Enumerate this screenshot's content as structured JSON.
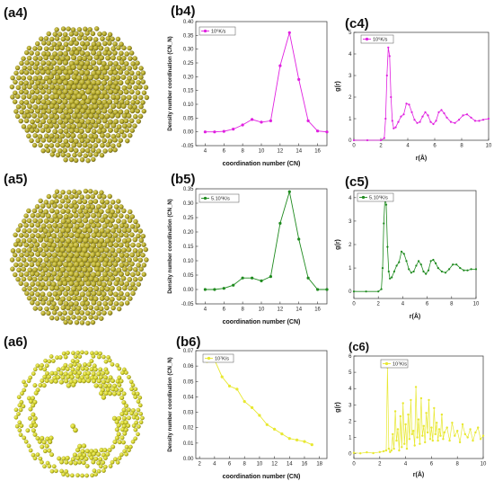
{
  "panels": [
    {
      "id": "a4",
      "label": "(a4)",
      "kind": "sphere",
      "color": "#b5a92a",
      "dark": "#6f6716",
      "light": "#dcd36a",
      "holes": false
    },
    {
      "id": "a5",
      "label": "(a5)",
      "kind": "sphere",
      "color": "#b9ad2c",
      "dark": "#716917",
      "light": "#e0d66d",
      "holes": false
    },
    {
      "id": "a6",
      "label": "(a6)",
      "kind": "sphere",
      "color": "#d7d62e",
      "dark": "#8f8d12",
      "light": "#f3f27a",
      "holes": true
    }
  ],
  "panel_labels": {
    "b4": "(b4)",
    "c4": "(c4)",
    "b5": "(b5)",
    "c5": "(c5)",
    "b6": "(b6)",
    "c6": "(c6)"
  },
  "chart_data": [
    {
      "id": "b4",
      "type": "line",
      "color": "#e020e0",
      "legend": "10⁵K/s",
      "xlabel": "coordination number (CN)",
      "ylabel": "Density number coordination (CN_N)",
      "xlim": [
        3,
        17
      ],
      "ylim": [
        -0.05,
        0.4
      ],
      "xticks": [
        4,
        6,
        8,
        10,
        12,
        14,
        16
      ],
      "yticks": [
        -0.05,
        0.0,
        0.05,
        0.1,
        0.15,
        0.2,
        0.25,
        0.3,
        0.35,
        0.4
      ],
      "x": [
        4,
        5,
        6,
        7,
        8,
        9,
        10,
        11,
        12,
        13,
        14,
        15,
        16,
        17
      ],
      "y": [
        0.0,
        0.0,
        0.002,
        0.01,
        0.025,
        0.045,
        0.035,
        0.04,
        0.24,
        0.36,
        0.19,
        0.04,
        0.003,
        0.0
      ]
    },
    {
      "id": "c4",
      "type": "line",
      "color": "#e020e0",
      "legend": "10⁵K/s",
      "xlabel": "r(Å)",
      "ylabel": "g(r)",
      "xlim": [
        0,
        10
      ],
      "ylim": [
        0,
        5
      ],
      "xticks": [
        0,
        2,
        4,
        6,
        8,
        10
      ],
      "yticks": [
        0,
        1,
        2,
        3,
        4,
        5
      ],
      "x": [
        0,
        1.0,
        2.0,
        2.25,
        2.35,
        2.45,
        2.55,
        2.65,
        2.75,
        2.85,
        2.95,
        3.1,
        3.3,
        3.5,
        3.7,
        3.9,
        4.1,
        4.3,
        4.5,
        4.7,
        4.9,
        5.1,
        5.3,
        5.5,
        5.7,
        5.9,
        6.1,
        6.3,
        6.5,
        6.7,
        6.9,
        7.2,
        7.5,
        7.8,
        8.1,
        8.4,
        8.7,
        9.0,
        9.3,
        9.6,
        10.0
      ],
      "y": [
        0,
        0,
        0,
        0.1,
        1.0,
        3.0,
        4.3,
        3.9,
        2.0,
        0.9,
        0.55,
        0.6,
        0.85,
        1.1,
        1.2,
        1.7,
        1.65,
        1.3,
        0.95,
        0.8,
        0.85,
        1.1,
        1.3,
        1.15,
        0.85,
        0.75,
        0.9,
        1.3,
        1.4,
        1.25,
        1.05,
        0.85,
        0.8,
        0.95,
        1.15,
        1.2,
        1.05,
        0.9,
        0.9,
        0.95,
        1.0
      ]
    },
    {
      "id": "b5",
      "type": "line",
      "color": "#1e8a1e",
      "legend": "5.10⁵K/s",
      "xlabel": "coordination number (CN)",
      "ylabel": "Density number coordination (CN_N)",
      "xlim": [
        3,
        17
      ],
      "ylim": [
        -0.05,
        0.35
      ],
      "xticks": [
        4,
        6,
        8,
        10,
        12,
        14,
        16
      ],
      "yticks": [
        -0.05,
        0.0,
        0.05,
        0.1,
        0.15,
        0.2,
        0.25,
        0.3,
        0.35
      ],
      "x": [
        4,
        5,
        6,
        7,
        8,
        9,
        10,
        11,
        12,
        13,
        14,
        15,
        16,
        17
      ],
      "y": [
        0.0,
        0.0,
        0.004,
        0.015,
        0.04,
        0.04,
        0.03,
        0.045,
        0.23,
        0.34,
        0.175,
        0.04,
        0.0,
        0.0
      ]
    },
    {
      "id": "c5",
      "type": "line",
      "color": "#1e8a1e",
      "legend": "5.10⁵K/s",
      "xlabel": "r(Å)",
      "ylabel": "g(r)",
      "xlim": [
        0,
        10
      ],
      "ylim": [
        -0.3,
        4.3
      ],
      "xticks": [
        0,
        2,
        4,
        6,
        8,
        10
      ],
      "yticks": [
        0,
        1,
        2,
        3,
        4
      ],
      "x": [
        0,
        1.0,
        2.0,
        2.25,
        2.35,
        2.45,
        2.55,
        2.65,
        2.75,
        2.85,
        2.95,
        3.1,
        3.3,
        3.5,
        3.7,
        3.9,
        4.1,
        4.3,
        4.5,
        4.7,
        4.9,
        5.1,
        5.3,
        5.5,
        5.7,
        5.9,
        6.1,
        6.3,
        6.5,
        6.7,
        6.9,
        7.2,
        7.5,
        7.8,
        8.1,
        8.4,
        8.7,
        9.0,
        9.3,
        9.6,
        10.0
      ],
      "y": [
        0,
        0,
        0,
        0.1,
        1.0,
        2.9,
        4.1,
        3.7,
        1.9,
        0.85,
        0.55,
        0.6,
        0.85,
        1.1,
        1.25,
        1.7,
        1.6,
        1.3,
        0.95,
        0.8,
        0.85,
        1.1,
        1.3,
        1.15,
        0.85,
        0.75,
        0.9,
        1.3,
        1.35,
        1.2,
        1.0,
        0.85,
        0.8,
        0.95,
        1.15,
        1.15,
        1.0,
        0.9,
        0.9,
        0.95,
        0.95
      ]
    },
    {
      "id": "b6",
      "type": "line",
      "color": "#e8e830",
      "legend": "10⁷K/s",
      "xlabel": "coordination number (CN)",
      "ylabel": "Density number coordination (CN_N)",
      "xlim": [
        1.5,
        19
      ],
      "ylim": [
        0.0,
        0.07
      ],
      "xticks": [
        2,
        4,
        6,
        8,
        10,
        12,
        14,
        16,
        18
      ],
      "yticks": [
        0.0,
        0.01,
        0.02,
        0.03,
        0.04,
        0.05,
        0.06,
        0.07
      ],
      "x": [
        3,
        4,
        5,
        6,
        7,
        8,
        9,
        10,
        11,
        12,
        13,
        14,
        15,
        16,
        17
      ],
      "y": [
        0.063,
        0.064,
        0.053,
        0.047,
        0.045,
        0.037,
        0.033,
        0.028,
        0.022,
        0.019,
        0.016,
        0.013,
        0.012,
        0.011,
        0.009
      ]
    },
    {
      "id": "c6",
      "type": "line",
      "color": "#e8e830",
      "legend": "10⁷K/s",
      "xlabel": "r(Å)",
      "ylabel": "g(r)",
      "xlim": [
        0,
        10
      ],
      "ylim": [
        -0.3,
        6
      ],
      "xticks": [
        0,
        2,
        4,
        6,
        8,
        10
      ],
      "yticks": [
        0,
        1,
        2,
        3,
        4,
        5,
        6
      ],
      "x": [
        0,
        0.5,
        1.0,
        1.5,
        2.0,
        2.3,
        2.5,
        2.6,
        2.7,
        2.8,
        2.9,
        3.0,
        3.1,
        3.2,
        3.3,
        3.4,
        3.5,
        3.6,
        3.7,
        3.8,
        3.9,
        4.0,
        4.1,
        4.2,
        4.3,
        4.4,
        4.5,
        4.6,
        4.7,
        4.8,
        4.9,
        5.0,
        5.1,
        5.2,
        5.3,
        5.4,
        5.5,
        5.6,
        5.7,
        5.8,
        5.9,
        6.0,
        6.1,
        6.2,
        6.3,
        6.4,
        6.5,
        6.6,
        6.7,
        6.8,
        6.9,
        7.0,
        7.2,
        7.4,
        7.6,
        7.8,
        8.0,
        8.2,
        8.4,
        8.6,
        8.8,
        9.0,
        9.2,
        9.4,
        9.6,
        9.8,
        10.0
      ],
      "y": [
        0.05,
        0.02,
        0.08,
        0.03,
        0.1,
        0.15,
        0.2,
        5.3,
        0.3,
        0.1,
        0.2,
        1.2,
        0.3,
        2.6,
        0.8,
        1.5,
        0.2,
        2.3,
        0.4,
        3.1,
        0.6,
        1.8,
        0.3,
        2.4,
        0.9,
        3.3,
        1.2,
        1.4,
        0.5,
        4.1,
        1.0,
        2.1,
        0.6,
        3.4,
        1.1,
        1.7,
        0.7,
        2.5,
        1.3,
        3.3,
        0.9,
        1.6,
        0.8,
        2.8,
        1.2,
        1.9,
        0.8,
        1.5,
        1.1,
        2.4,
        0.9,
        1.3,
        1.6,
        0.8,
        1.9,
        1.1,
        1.4,
        0.7,
        1.8,
        1.2,
        1.0,
        1.5,
        0.8,
        1.3,
        1.6,
        0.9,
        1.1
      ]
    }
  ]
}
